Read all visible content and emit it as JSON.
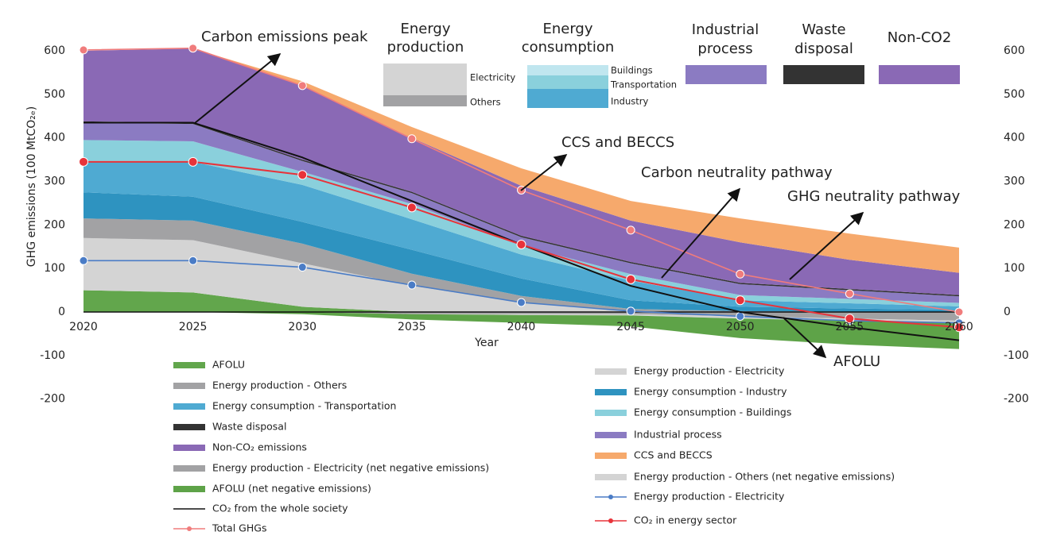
{
  "chart_data": {
    "type": "area",
    "x_label": "Year",
    "y_label": "GHG emissions (100 MtCO₂ₑ)",
    "x": [
      2020,
      2025,
      2030,
      2035,
      2040,
      2045,
      2050,
      2055,
      2060
    ],
    "xlim": [
      2020,
      2060
    ],
    "xticks": [
      2020,
      2025,
      2030,
      2035,
      2040,
      2045,
      2050,
      2055,
      2060
    ],
    "ylim": [
      -200,
      600
    ],
    "yticks": [
      -200,
      -100,
      0,
      100,
      200,
      300,
      400,
      500,
      600
    ],
    "grid": false,
    "series": [
      {
        "name": "AFOLU",
        "type": "area",
        "color": "#62a64c",
        "values": [
          50,
          45,
          12,
          0,
          0,
          0,
          0,
          0,
          0
        ]
      },
      {
        "name": "Energy production - Electricity",
        "type": "area",
        "color": "#d4d4d4",
        "values": [
          120,
          120,
          100,
          60,
          22,
          2,
          0,
          0,
          0
        ]
      },
      {
        "name": "Energy production - Others",
        "type": "area",
        "color": "#a2a2a4",
        "values": [
          45,
          45,
          45,
          28,
          15,
          5,
          2,
          1,
          0
        ]
      },
      {
        "name": "Energy consumption - Industry",
        "type": "area",
        "color": "#2e93c0",
        "values": [
          60,
          55,
          50,
          55,
          40,
          20,
          10,
          7,
          5
        ]
      },
      {
        "name": "Energy consumption - Transportation",
        "type": "area",
        "color": "#4faad2",
        "values": [
          70,
          80,
          85,
          70,
          55,
          45,
          15,
          12,
          8
        ]
      },
      {
        "name": "Energy consumption - Buildings",
        "type": "area",
        "color": "#8ad0dc",
        "values": [
          50,
          47,
          30,
          35,
          20,
          15,
          12,
          10,
          8
        ]
      },
      {
        "name": "Industrial process",
        "type": "area",
        "color": "#8b7bc2",
        "values": [
          40,
          40,
          25,
          25,
          20,
          25,
          25,
          20,
          15
        ]
      },
      {
        "name": "Waste disposal",
        "type": "area",
        "color": "#333333",
        "values": [
          3,
          3,
          3,
          3,
          3,
          3,
          3,
          3,
          3
        ]
      },
      {
        "name": "Non-CO₂ emissions",
        "type": "area",
        "color": "#8a69b5",
        "values": [
          162,
          170,
          170,
          124,
          115,
          95,
          93,
          67,
          51
        ]
      },
      {
        "name": "CCS and BECCS",
        "type": "area",
        "color": "#f6a96c",
        "values": [
          0,
          0,
          10,
          25,
          40,
          45,
          55,
          60,
          58
        ]
      },
      {
        "name": "Energy production - Electricity (net negative emissions)",
        "type": "area",
        "color": "#a2a2a4",
        "values": [
          0,
          0,
          0,
          -5,
          -5,
          -5,
          -10,
          -15,
          -20
        ]
      },
      {
        "name": "Energy production - Others (net negative emissions)",
        "type": "area",
        "color": "#d4d4d4",
        "values": [
          0,
          0,
          0,
          0,
          -2,
          -3,
          -5,
          -5,
          -5
        ]
      },
      {
        "name": "AFOLU (net negative emissions)",
        "type": "area",
        "color": "#5ea348",
        "values": [
          0,
          0,
          -5,
          -12,
          -18,
          -25,
          -45,
          -55,
          -60
        ]
      },
      {
        "name": "Energy production - Electricity",
        "type": "line",
        "color": "#4a7cc6",
        "markers": true,
        "values": [
          118,
          118,
          103,
          62,
          22,
          2,
          -10,
          -20,
          -25
        ]
      },
      {
        "name": "CO₂ from the whole society",
        "type": "line",
        "color": "#111111",
        "markers": false,
        "values": [
          435,
          435,
          355,
          255,
          155,
          60,
          0,
          -35,
          -65
        ]
      },
      {
        "name": "CO₂ in energy sector",
        "type": "line",
        "color": "#e8333a",
        "markers": true,
        "values": [
          345,
          345,
          315,
          240,
          155,
          75,
          27,
          -15,
          -35
        ]
      },
      {
        "name": "Total GHGs",
        "type": "line",
        "color": "#f07c7c",
        "markers": true,
        "values": [
          602,
          606,
          520,
          398,
          280,
          188,
          87,
          42,
          0
        ]
      }
    ],
    "annotations": [
      "Carbon emissions peak",
      "CCS and BECCS",
      "Carbon neutrality pathway",
      "GHG neutrality pathway",
      "AFOLU"
    ],
    "key": {
      "energy_production": {
        "title": [
          "Energy",
          "production"
        ],
        "items": [
          "Electricity",
          "Others"
        ]
      },
      "energy_consumption": {
        "title": [
          "Energy",
          "consumption"
        ],
        "items": [
          "Buildings",
          "Transportation",
          "Industry"
        ]
      },
      "industrial_process": [
        "Industrial",
        "process"
      ],
      "waste_disposal": [
        "Waste",
        "disposal"
      ],
      "non_co2": "Non-CO2"
    }
  }
}
